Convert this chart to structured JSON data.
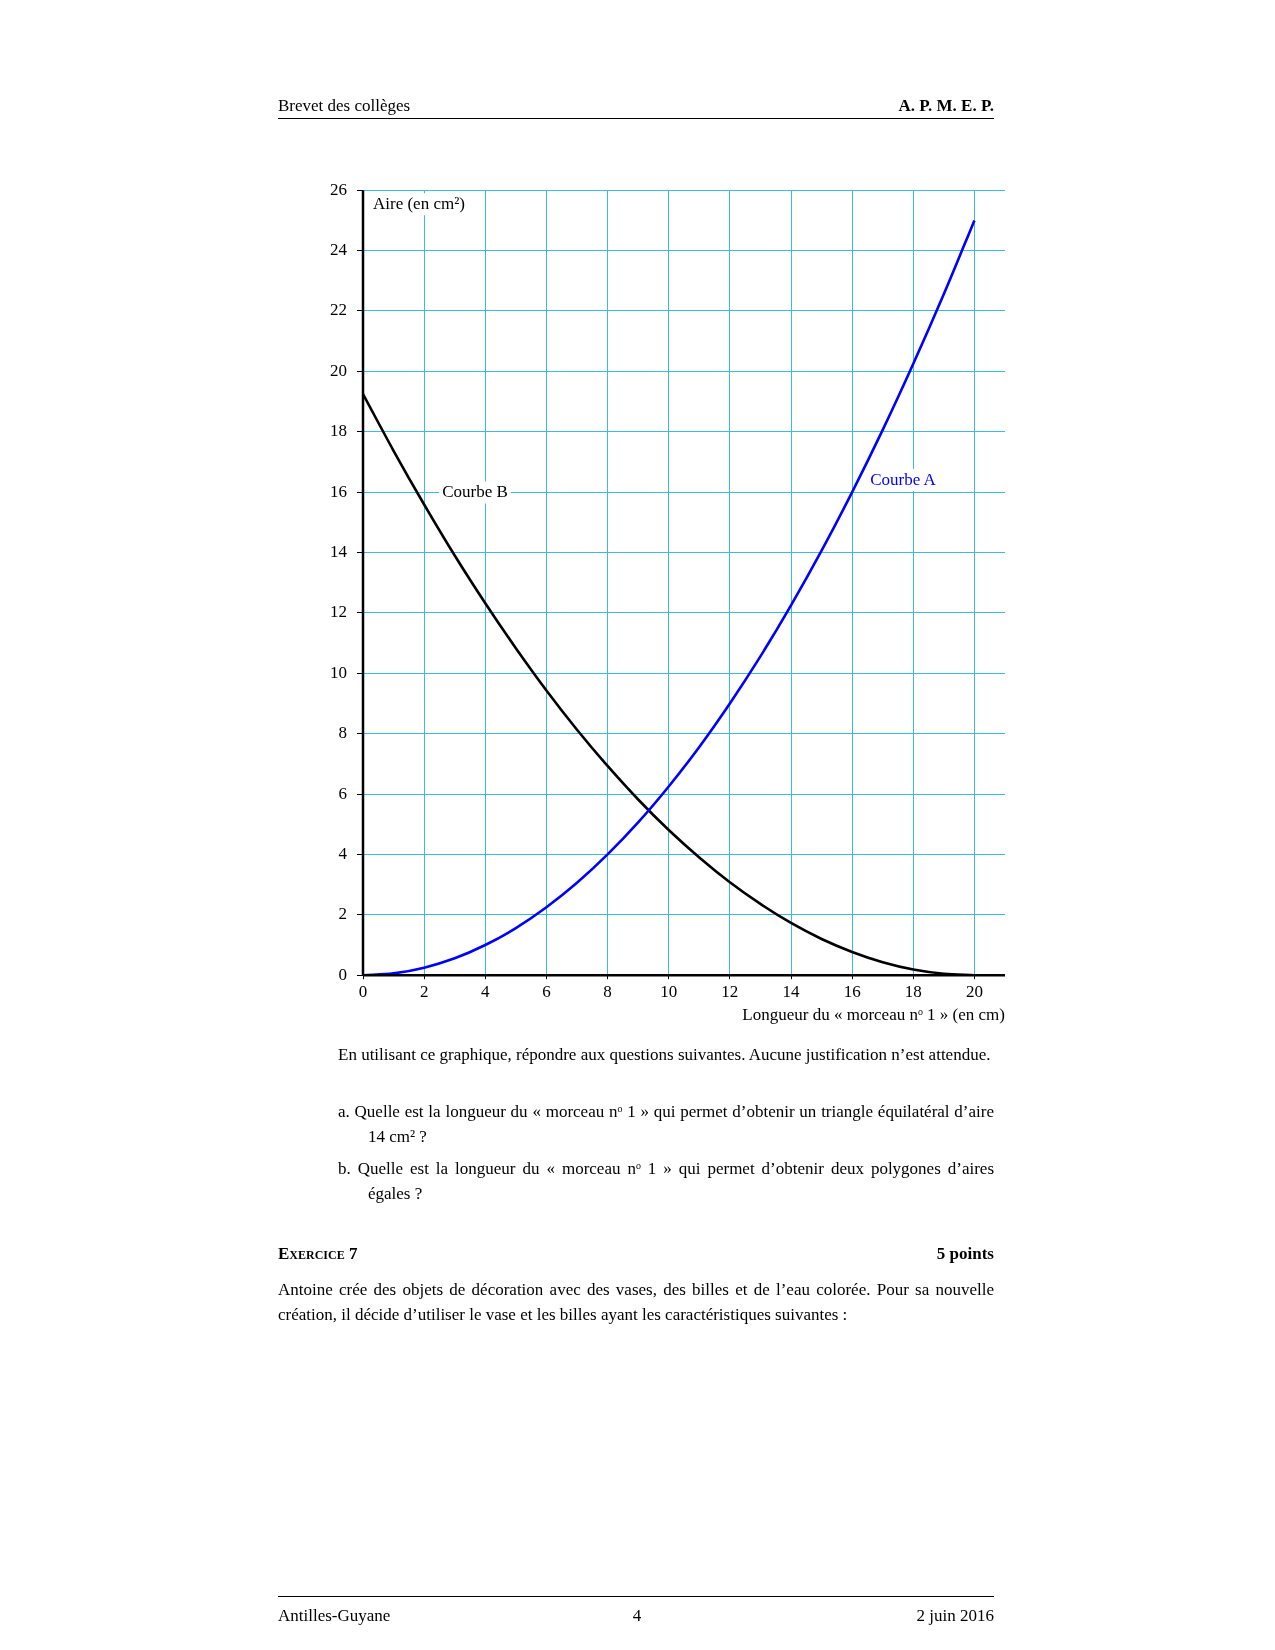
{
  "chart_data": {
    "type": "line",
    "xlabel": "Longueur du « morceau nᵒ 1 » (en cm)",
    "ylabel": "Aire (en cm²)",
    "xlim": [
      0,
      21
    ],
    "xticks": [
      0,
      2,
      4,
      6,
      8,
      10,
      12,
      14,
      16,
      18,
      20
    ],
    "ylim": [
      0,
      26
    ],
    "yticks": [
      0,
      2,
      4,
      6,
      8,
      10,
      12,
      14,
      16,
      18,
      20,
      22,
      24,
      26
    ],
    "grid": true,
    "legend": false,
    "marker": "none",
    "line_style": "solid",
    "x": [
      0,
      1,
      2,
      3,
      4,
      5,
      6,
      7,
      8,
      9,
      10,
      11,
      12,
      13,
      14,
      15,
      16,
      17,
      18,
      19,
      20
    ],
    "series": [
      {
        "name": "Courbe A",
        "color": "#0000ff",
        "values": [
          0,
          0.06,
          0.25,
          0.56,
          1,
          1.56,
          2.25,
          3.06,
          4,
          5.06,
          6.25,
          7.56,
          9,
          10.56,
          12.25,
          14.06,
          16,
          18.06,
          20.25,
          22.56,
          25
        ]
      },
      {
        "name": "Courbe B",
        "color": "#000000",
        "values": [
          19.25,
          17.37,
          15.59,
          13.9,
          12.32,
          10.83,
          9.43,
          8.13,
          6.93,
          5.82,
          4.81,
          3.9,
          3.08,
          2.36,
          1.73,
          1.2,
          0.77,
          0.43,
          0.19,
          0.05,
          0
        ]
      }
    ],
    "annotations": [
      "Brevet des collèges",
      "A. P. M. E. P.",
      "En utilisant ce graphique, répondre aux questions suivantes. Aucune justification n’est attendue.",
      "a. Quelle est la longueur du « morceau nᵒ 1 » qui permet d’obtenir un triangle équilatéral d’aire 14 cm² ?",
      "b. Quelle est la longueur du « morceau nᵒ 1 » qui permet d’obtenir deux polygones d’aires égales ?",
      "Exercice 7",
      "5 points",
      "Antoine crée des objets de décoration avec des vases, des billes et de l’eau colorée. Pour sa nouvelle création, il décide d’utiliser le vase et les billes ayant les caractéristiques suivantes :",
      "Antilles-Guyane",
      "4",
      "2 juin 2016"
    ]
  }
}
